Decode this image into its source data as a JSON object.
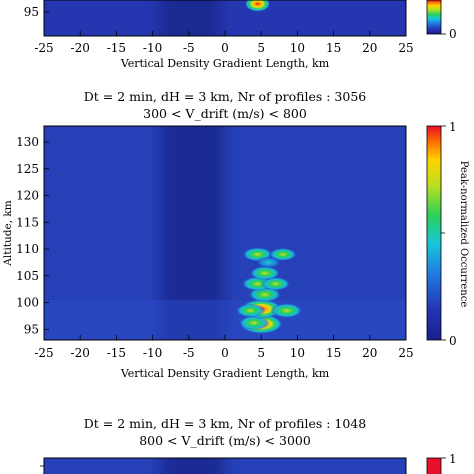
{
  "chart_data": [
    {
      "type": "heatmap",
      "visible": "partial-bottom",
      "xlabel": "Vertical Density Gradient Length, km",
      "x_ticks": [
        "-25",
        "-20",
        "-15",
        "-10",
        "-5",
        "0",
        "5",
        "10",
        "15",
        "20",
        "25"
      ],
      "xlim": [
        -25,
        25
      ],
      "y_ticks": [
        "95"
      ],
      "colorbar_ticks": [
        "0"
      ],
      "hotspots": [
        {
          "x": 4.5,
          "y": 96.5,
          "value": 1.0
        }
      ]
    },
    {
      "type": "heatmap",
      "title": "Dt = 2 min, dH = 3 km, Nr of profiles :  3056",
      "subtitle": "300 < V_drift (m/s) <  800",
      "xlabel": "Vertical Density Gradient Length, km",
      "ylabel": "Altitude, km",
      "colorbar_label": "Peak-normalized Occurrence",
      "x_ticks": [
        "-25",
        "-20",
        "-15",
        "-10",
        "-5",
        "0",
        "5",
        "10",
        "15",
        "20",
        "25"
      ],
      "y_ticks": [
        "95",
        "100",
        "105",
        "110",
        "115",
        "120",
        "125",
        "130"
      ],
      "colorbar_ticks": [
        "0",
        "1"
      ],
      "xlim": [
        -25,
        25
      ],
      "ylim": [
        93,
        133
      ],
      "clim": [
        0,
        1
      ],
      "hotspots": [
        {
          "x": 5.0,
          "y": 96.0,
          "value": 1.0
        },
        {
          "x": 4.0,
          "y": 96.2,
          "value": 0.55
        },
        {
          "x": 5.0,
          "y": 98.8,
          "value": 0.95
        },
        {
          "x": 8.5,
          "y": 98.5,
          "value": 0.6
        },
        {
          "x": 3.5,
          "y": 98.5,
          "value": 0.5
        },
        {
          "x": 5.5,
          "y": 101.5,
          "value": 0.65
        },
        {
          "x": 4.5,
          "y": 103.5,
          "value": 0.6
        },
        {
          "x": 7.0,
          "y": 103.5,
          "value": 0.5
        },
        {
          "x": 5.5,
          "y": 105.5,
          "value": 0.55
        },
        {
          "x": 4.5,
          "y": 109.0,
          "value": 0.55
        },
        {
          "x": 8.0,
          "y": 109.0,
          "value": 0.45
        },
        {
          "x": 6.0,
          "y": 107.5,
          "value": 0.35
        }
      ]
    },
    {
      "type": "heatmap",
      "visible": "partial-top",
      "title": "Dt = 2 min, dH = 3 km, Nr of profiles :  1048",
      "subtitle": "800 < V_drift (m/s) <  3000",
      "colorbar_ticks": [
        "1"
      ]
    }
  ]
}
